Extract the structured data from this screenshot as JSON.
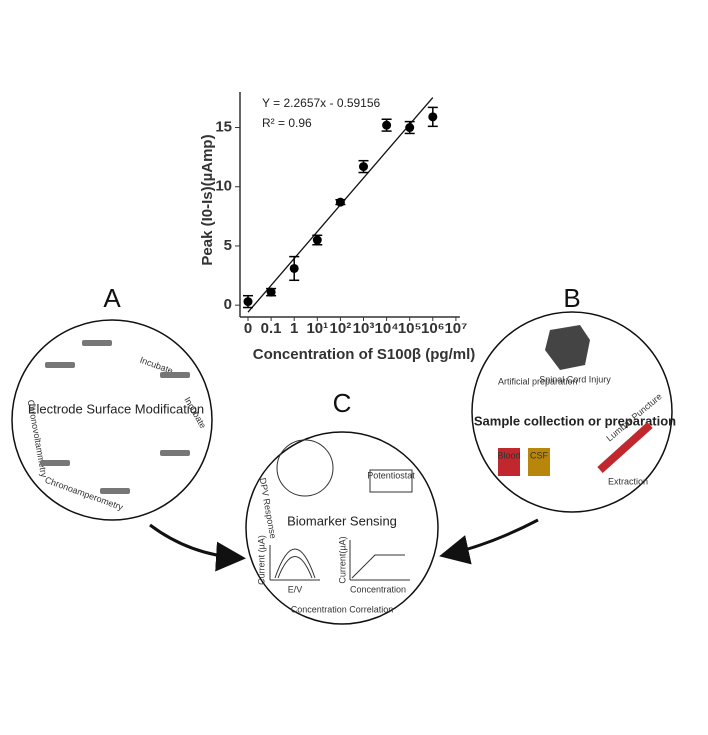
{
  "chart_data": {
    "type": "scatter",
    "y_label": "Peak (I0-Is)(µAmp)",
    "x_label": "Concentration of S100β (pg/ml)",
    "annotations": [
      "Y = 2.2657x - 0.59156",
      "R² = 0.96"
    ],
    "categories": [
      "0",
      "0.1",
      "1",
      "10¹",
      "10²",
      "10³",
      "10⁴",
      "10⁵",
      "10⁶",
      "10⁷"
    ],
    "values": [
      0.3,
      1.1,
      3.1,
      5.5,
      8.7,
      11.7,
      15.2,
      15.0,
      15.9,
      null
    ],
    "errors": [
      0.5,
      0.3,
      1.0,
      0.4,
      0.2,
      0.5,
      0.5,
      0.5,
      0.8,
      null
    ],
    "trendline": {
      "slope": 2.2657,
      "intercept": -0.59156
    },
    "color": "#000000",
    "ylim": [
      -1,
      18
    ],
    "yticks": [
      0,
      5,
      10,
      15
    ]
  },
  "panels": [
    {
      "letter": "A",
      "title": "Electrode Surface Modification",
      "labels": [
        "Incubate",
        "Incubate",
        "Chronovoltammetry",
        "Chronoamperometry"
      ]
    },
    {
      "letter": "B",
      "title": "Sample collection or preparation",
      "labels": [
        "Artificial preparation",
        "Spinal Cord Injury",
        "Blood",
        "CSF",
        "Lumbar Puncture",
        "Extraction"
      ]
    },
    {
      "letter": "C",
      "title": "Biomarker Sensing",
      "labels": [
        "DPV Response",
        "Potentiostat",
        "Current (µA)",
        "E/V",
        "Current(µA)",
        "Concentration",
        "Concentration Correlation"
      ]
    }
  ]
}
